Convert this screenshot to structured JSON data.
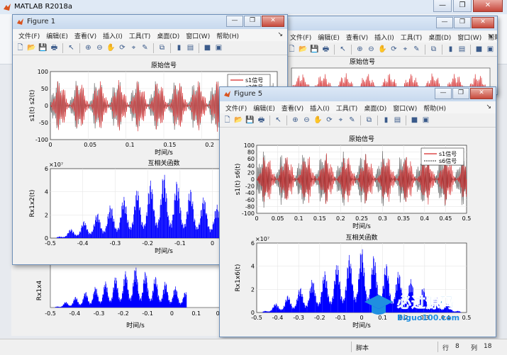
{
  "app": {
    "title": "MATLAB R2018a"
  },
  "window_controls": {
    "minimize": "—",
    "restore": "❐",
    "close": "✕"
  },
  "menu": [
    "文件(F)",
    "编辑(E)",
    "查看(V)",
    "插入(I)",
    "工具(T)",
    "桌面(D)",
    "窗口(W)",
    "帮助(H)"
  ],
  "figure1": {
    "title": "Figure 1",
    "top_plot": {
      "title": "原始信号",
      "ylabel": "s1(t)  s2(t)",
      "xlabel": "时间/s",
      "legend": [
        "s1信号",
        "s2信号"
      ],
      "yticks": [
        "100",
        "50",
        "0",
        "-50",
        "-100"
      ],
      "xticks": [
        "0",
        "0.05",
        "0.1",
        "0.15",
        "0.2",
        "0.25",
        "0.3"
      ]
    },
    "bottom_plot": {
      "title": "互相关函数",
      "ylabel": "Rx1x2(t)",
      "xlabel": "时间/s",
      "exponent": "×10⁷",
      "yticks": [
        "6",
        "4",
        "2",
        "0"
      ],
      "xticks": [
        "-0.5",
        "-0.4",
        "-0.3",
        "-0.2",
        "-0.1",
        "0",
        "0.1",
        "0.2"
      ]
    }
  },
  "figure5": {
    "title": "Figure 5",
    "top_plot": {
      "title": "原始信号",
      "ylabel": "s1(t)  s6(t)",
      "xlabel": "时间/s",
      "legend": [
        "s1信号",
        "s6信号"
      ],
      "yticks": [
        "100",
        "80",
        "60",
        "40",
        "20",
        "0",
        "-20",
        "-40",
        "-60",
        "-80",
        "-100"
      ],
      "xticks": [
        "0",
        "0.05",
        "0.1",
        "0.15",
        "0.2",
        "0.25",
        "0.3",
        "0.35",
        "0.4",
        "0.45",
        "0.5"
      ]
    },
    "bottom_plot": {
      "title": "互相关函数",
      "ylabel": "Rx1x6(t)",
      "xlabel": "时间/s",
      "exponent": "×10⁷",
      "yticks": [
        "6",
        "4",
        "2",
        "0"
      ],
      "xticks": [
        "-0.5",
        "-0.4",
        "-0.3",
        "-0.2",
        "-0.1",
        "0",
        "0.1",
        "0.2",
        "0.3",
        "0.4",
        "0.5"
      ]
    }
  },
  "background": {
    "lower_plot": {
      "ylabel": "Rx1x4",
      "xlabel": "时间/s",
      "xticks": [
        "-0.5",
        "-0.4",
        "-0.3",
        "-0.2",
        "-0.1",
        "0",
        "0.1",
        "0.2"
      ]
    }
  },
  "status": {
    "mode": "脚本",
    "row_label": "行",
    "row": "8",
    "col_label": "列",
    "col": "18"
  },
  "watermark": {
    "cn": "必过源码",
    "url": "Biguo100.com"
  },
  "colors": {
    "signal_red": "#d62728",
    "signal_dark": "#555555",
    "corr_blue": "#0000ff"
  }
}
